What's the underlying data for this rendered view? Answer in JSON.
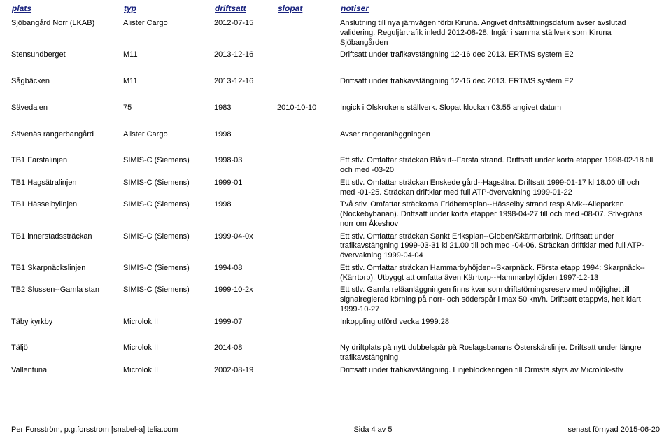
{
  "columns": {
    "plats": "plats",
    "typ": "typ",
    "driftsatt": "driftsatt",
    "slopat": "slopat",
    "notiser": "notiser"
  },
  "rows": [
    {
      "plats": "Sjöbangård Norr (LKAB)",
      "typ": "Alister Cargo",
      "driftsatt": "2012-07-15",
      "slopat": "",
      "notiser": "Anslutning till nya järnvägen förbi Kiruna. Angivet driftsättningsdatum avser avslutad validering. Reguljärtrafik inledd 2012-08-28. Ingår i samma ställverk som Kiruna Sjöbangården",
      "gap": false
    },
    {
      "plats": "Stensundberget",
      "typ": "M11",
      "driftsatt": "2013-12-16",
      "slopat": "",
      "notiser": "Driftsatt under trafikavstängning 12-16 dec 2013. ERTMS system E2",
      "gap": false
    },
    {
      "plats": "Sågbäcken",
      "typ": "M11",
      "driftsatt": "2013-12-16",
      "slopat": "",
      "notiser": "Driftsatt under trafikavstängning 12-16 dec 2013. ERTMS system E2",
      "gap": true
    },
    {
      "plats": "Sävedalen",
      "typ": "75",
      "driftsatt": "1983",
      "slopat": "2010-10-10",
      "notiser": "Ingick i Olskrokens ställverk. Slopat klockan 03.55 angivet datum",
      "gap": true
    },
    {
      "plats": "Sävenäs rangerbangård",
      "typ": "Alister Cargo",
      "driftsatt": "1998",
      "slopat": "",
      "notiser": "Avser rangeranläggningen",
      "gap": true
    },
    {
      "plats": "TB1 Farstalinjen",
      "typ": "SIMIS-C (Siemens)",
      "driftsatt": "1998-03",
      "slopat": "",
      "notiser": "Ett stlv. Omfattar sträckan Blåsut--Farsta strand. Driftsatt under korta etapper 1998-02-18 till och med -03-20",
      "gap": true
    },
    {
      "plats": "TB1 Hagsätralinjen",
      "typ": "SIMIS-C (Siemens)",
      "driftsatt": "1999-01",
      "slopat": "",
      "notiser": "Ett stlv. Omfattar sträckan Enskede gård--Hagsätra. Driftsatt 1999-01-17 kl 18.00 till och med -01-25. Sträckan driftklar med full ATP-övervakning 1999-01-22",
      "gap": false
    },
    {
      "plats": "TB1 Hässelbylinjen",
      "typ": "SIMIS-C (Siemens)",
      "driftsatt": "1998",
      "slopat": "",
      "notiser": "Två stlv. Omfattar sträckorna Fridhemsplan--Hässelby strand resp Alvik--Alleparken (Nockebybanan). Driftsatt under korta etapper 1998-04-27 till och med -08-07. Stlv-gräns norr om Åkeshov",
      "gap": false
    },
    {
      "plats": "TB1 innerstadssträckan",
      "typ": "SIMIS-C (Siemens)",
      "driftsatt": "1999-04-0x",
      "slopat": "",
      "notiser": "Ett stlv. Omfattar sträckan Sankt Eriksplan--Globen/Skärmarbrink. Driftsatt under trafikavstängning 1999-03-31 kl 21.00 till och med -04-06. Sträckan driftklar med full ATP-övervakning 1999-04-04",
      "gap": false
    },
    {
      "plats": "TB1 Skarpnäckslinjen",
      "typ": "SIMIS-C (Siemens)",
      "driftsatt": "1994-08",
      "slopat": "",
      "notiser": "Ett stlv. Omfattar sträckan Hammarbyhöjden--Skarpnäck. Första etapp 1994: Skarpnäck--(Kärrtorp). Utbyggt att omfatta även Kärrtorp--Hammarbyhöjden 1997-12-13",
      "gap": false
    },
    {
      "plats": "TB2 Slussen--Gamla stan",
      "typ": "SIMIS-C (Siemens)",
      "driftsatt": "1999-10-2x",
      "slopat": "",
      "notiser": "Ett stlv. Gamla reläanläggningen finns kvar som driftstörningsreserv med möjlighet till signalreglerad körning på norr- och söderspår i max 50 km/h. Driftsatt etappvis, helt klart 1999-10-27",
      "gap": false
    },
    {
      "plats": "Täby kyrkby",
      "typ": "Microlok II",
      "driftsatt": "1999-07",
      "slopat": "",
      "notiser": "Inkoppling utförd vecka 1999:28",
      "gap": false
    },
    {
      "plats": "Täljö",
      "typ": "Microlok II",
      "driftsatt": "2014-08",
      "slopat": "",
      "notiser": "Ny driftplats på nytt dubbelspår på Roslagsbanans Österskärslinje. Driftsatt under längre trafikavstängning",
      "gap": true
    },
    {
      "plats": "Vallentuna",
      "typ": "Microlok II",
      "driftsatt": "2002-08-19",
      "slopat": "",
      "notiser": "Driftsatt under trafikavstängning. Linjeblockeringen till Ormsta styrs av Microlok-stlv",
      "gap": false
    }
  ],
  "footer": {
    "left": "Per Forsström, p.g.forsstrom [snabel-a] telia.com",
    "center": "Sida 4 av 5",
    "right": "senast förnyad 2015-06-20"
  }
}
